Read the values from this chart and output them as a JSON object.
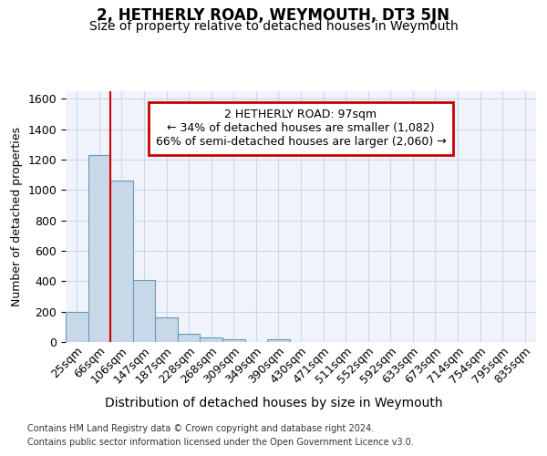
{
  "title": "2, HETHERLY ROAD, WEYMOUTH, DT3 5JN",
  "subtitle": "Size of property relative to detached houses in Weymouth",
  "xlabel": "Distribution of detached houses by size in Weymouth",
  "ylabel": "Number of detached properties",
  "footer_line1": "Contains HM Land Registry data © Crown copyright and database right 2024.",
  "footer_line2": "Contains public sector information licensed under the Open Government Licence v3.0.",
  "bin_labels": [
    "25sqm",
    "66sqm",
    "106sqm",
    "147sqm",
    "187sqm",
    "228sqm",
    "268sqm",
    "309sqm",
    "349sqm",
    "390sqm",
    "430sqm",
    "471sqm",
    "511sqm",
    "552sqm",
    "592sqm",
    "633sqm",
    "673sqm",
    "714sqm",
    "754sqm",
    "795sqm",
    "835sqm"
  ],
  "bar_heights": [
    200,
    1230,
    1060,
    410,
    165,
    52,
    30,
    20,
    0,
    20,
    0,
    0,
    0,
    0,
    0,
    0,
    0,
    0,
    0,
    0,
    0
  ],
  "bar_color": "#c8d8e8",
  "bar_edge_color": "#6699bb",
  "annotation_text_line1": "2 HETHERLY ROAD: 97sqm",
  "annotation_text_line2": "← 34% of detached houses are smaller (1,082)",
  "annotation_text_line3": "66% of semi-detached houses are larger (2,060) →",
  "annotation_box_color": "#cc0000",
  "property_line_bin": 2,
  "ylim": [
    0,
    1650
  ],
  "yticks": [
    0,
    200,
    400,
    600,
    800,
    1000,
    1200,
    1400,
    1600
  ],
  "grid_color": "#c8d8ec",
  "background_color": "#f0f4fa",
  "title_fontsize": 12,
  "subtitle_fontsize": 10,
  "xlabel_fontsize": 10,
  "ylabel_fontsize": 9,
  "tick_fontsize": 9,
  "footer_fontsize": 7
}
